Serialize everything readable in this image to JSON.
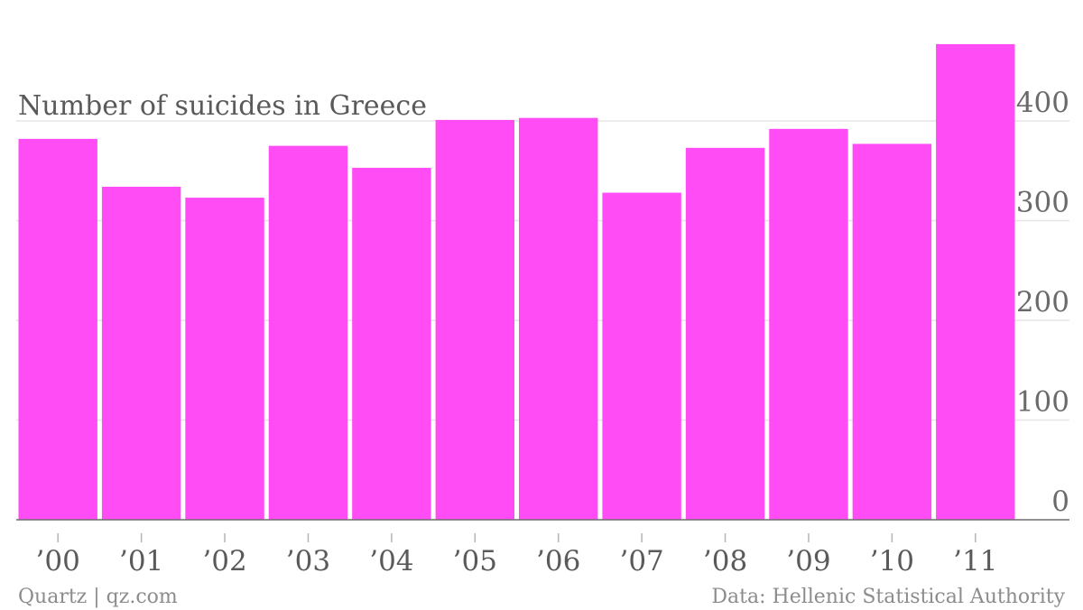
{
  "chart_data": {
    "type": "bar",
    "title": "Number of suicides in Greece",
    "categories": [
      "’00",
      "’01",
      "’02",
      "’03",
      "’04",
      "’05",
      "’06",
      "’07",
      "’08",
      "’09",
      "’10",
      "’11"
    ],
    "values": [
      382,
      334,
      323,
      375,
      353,
      401,
      403,
      328,
      373,
      392,
      377,
      477
    ],
    "xlabel": "",
    "ylabel": "",
    "ylim": [
      0,
      477
    ],
    "yticks": [
      0,
      100,
      200,
      300,
      400
    ],
    "ytick_labels": [
      "0",
      "100",
      "200",
      "300",
      "400"
    ],
    "y_axis_side": "right",
    "grid": true,
    "legend": "none",
    "bar_color": "#ff4cf4"
  },
  "footer": {
    "source_left": "Quartz | qz.com",
    "source_right": "Data: Hellenic Statistical Authority"
  }
}
